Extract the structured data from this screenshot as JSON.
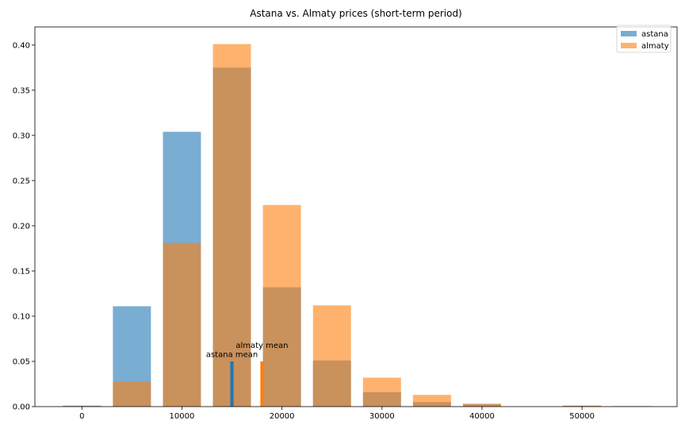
{
  "chart_data": {
    "type": "bar",
    "title": "Astana vs. Almaty prices (short-term period)",
    "xlabel": "",
    "ylabel": "",
    "xlim": [
      -4700,
      59500
    ],
    "ylim": [
      0,
      0.42
    ],
    "xticks": [
      0,
      10000,
      20000,
      30000,
      40000,
      50000
    ],
    "yticks": [
      0.0,
      0.05,
      0.1,
      0.15,
      0.2,
      0.25,
      0.3,
      0.35,
      0.4
    ],
    "grid": false,
    "legend_position": "top-right",
    "bin_width": 3800,
    "x": [
      0,
      5000,
      10000,
      15000,
      20000,
      25000,
      30000,
      35000,
      40000,
      45000,
      50000,
      55000
    ],
    "series": [
      {
        "name": "astana",
        "color": "#1f77b4",
        "opacity": 0.6,
        "values": [
          0.001,
          0.111,
          0.304,
          0.375,
          0.132,
          0.051,
          0.016,
          0.005,
          0.003,
          0.0,
          0.001,
          0.0005
        ]
      },
      {
        "name": "almaty",
        "color": "#ff7f0e",
        "opacity": 0.6,
        "values": [
          0.0005,
          0.028,
          0.181,
          0.401,
          0.223,
          0.112,
          0.032,
          0.013,
          0.003,
          0.0,
          0.001,
          0.0005
        ]
      }
    ],
    "mean_markers": [
      {
        "label": "astana mean",
        "x": 15000,
        "value": 0.05,
        "color": "#1f77b4",
        "text_y": 0.055
      },
      {
        "label": "almaty mean",
        "x": 18000,
        "value": 0.05,
        "color": "#ff7f0e",
        "text_y": 0.065
      }
    ]
  }
}
